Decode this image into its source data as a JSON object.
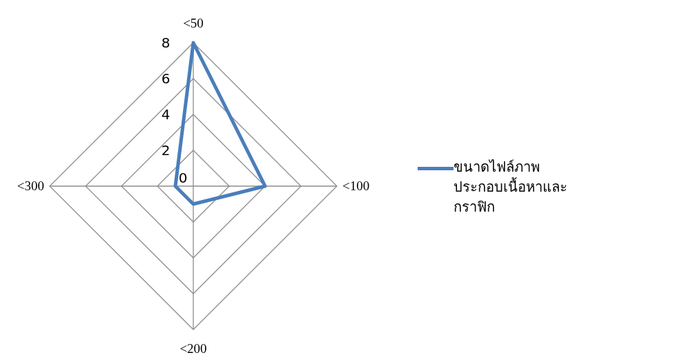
{
  "chart_data": {
    "type": "radar",
    "categories": [
      "<50",
      "<100",
      "<200",
      "<300"
    ],
    "series": [
      {
        "name": "ขนาดไฟล์ภาพประกอบเนื้อหาและกราฟิก",
        "color": "#4a7ebb",
        "values": [
          8,
          4,
          1,
          1
        ]
      }
    ],
    "ylim": [
      0,
      8
    ],
    "yticks": [
      0,
      2,
      4,
      6,
      8
    ],
    "legend": "right",
    "marker": "none",
    "line_style": "solid",
    "grid": true
  }
}
